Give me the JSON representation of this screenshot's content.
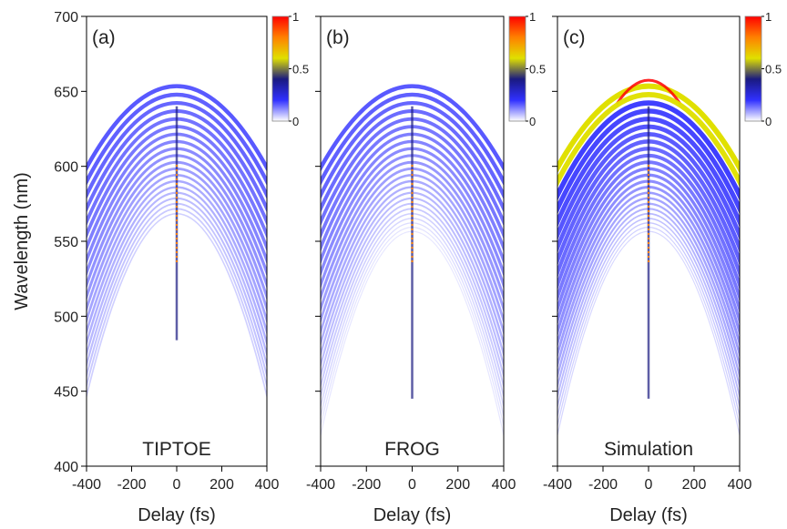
{
  "chart_data": [
    {
      "type": "heatmap",
      "label": "(a)",
      "annotation": "TIPTOE",
      "xlabel": "Delay (fs)",
      "ylabel": "Wavelength (nm)",
      "xlim": [
        -400,
        400
      ],
      "xticks": [
        -400,
        -200,
        0,
        200,
        400
      ],
      "ylim": [
        400,
        700
      ],
      "yticks": [
        400,
        450,
        500,
        550,
        600,
        650,
        700
      ],
      "colorbar": {
        "lim": [
          0,
          1
        ],
        "ticks": [
          0,
          0.5,
          1
        ],
        "colors": [
          "#ffffff",
          "#3030ff",
          "#1a1a80",
          "#e0e000",
          "#ff8000",
          "#ff0000"
        ]
      }
    },
    {
      "type": "heatmap",
      "label": "(b)",
      "annotation": "FROG",
      "xlabel": "Delay (fs)",
      "xlim": [
        -400,
        400
      ],
      "xticks": [
        -400,
        -200,
        0,
        200,
        400
      ],
      "ylim": [
        400,
        700
      ],
      "yticks": [
        400,
        450,
        500,
        550,
        600,
        650,
        700
      ],
      "colorbar": {
        "lim": [
          0,
          1
        ],
        "ticks": [
          0,
          0.5,
          1
        ],
        "colors": [
          "#ffffff",
          "#3030ff",
          "#1a1a80",
          "#e0e000",
          "#ff8000",
          "#ff0000"
        ]
      }
    },
    {
      "type": "heatmap",
      "label": "(c)",
      "annotation": "Simulation",
      "xlabel": "Delay (fs)",
      "xlim": [
        -400,
        400
      ],
      "xticks": [
        -400,
        -200,
        0,
        200,
        400
      ],
      "ylim": [
        400,
        700
      ],
      "yticks": [
        400,
        450,
        500,
        550,
        600,
        650,
        700
      ],
      "colorbar": {
        "lim": [
          0,
          1
        ],
        "ticks": [
          0,
          0.5,
          1
        ],
        "colors": [
          "#ffffff",
          "#3030ff",
          "#1a1a80",
          "#e0e000",
          "#ff8000",
          "#ff0000"
        ]
      }
    }
  ]
}
